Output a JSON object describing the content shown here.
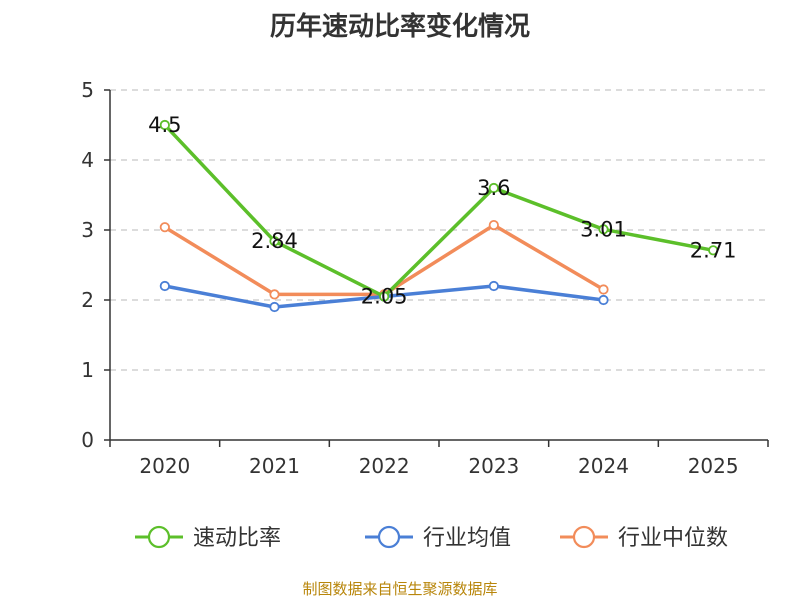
{
  "chart_data": {
    "type": "line",
    "title": "历年速动比率变化情况",
    "categories": [
      "2020",
      "2021",
      "2022",
      "2023",
      "2024",
      "2025"
    ],
    "series": [
      {
        "name": "速动比率",
        "color": "#5cbf2a",
        "values": [
          4.5,
          2.84,
          2.05,
          3.6,
          3.01,
          2.71
        ],
        "labels": [
          "4.5",
          "2.84",
          "2.05",
          "3.6",
          "3.01",
          "2.71"
        ]
      },
      {
        "name": "行业均值",
        "color": "#4a7fd6",
        "values": [
          2.2,
          1.9,
          2.05,
          2.2,
          2.0,
          null
        ]
      },
      {
        "name": "行业中位数",
        "color": "#f28c5a",
        "values": [
          3.04,
          2.08,
          2.08,
          3.07,
          2.15,
          null
        ]
      }
    ],
    "yticks": [
      "0",
      "1",
      "2",
      "3",
      "4",
      "5"
    ],
    "ylim": [
      0,
      5
    ],
    "xlabel": "",
    "ylabel": "",
    "grid": true,
    "legend_position": "bottom"
  },
  "source": "制图数据来自恒生聚源数据库"
}
